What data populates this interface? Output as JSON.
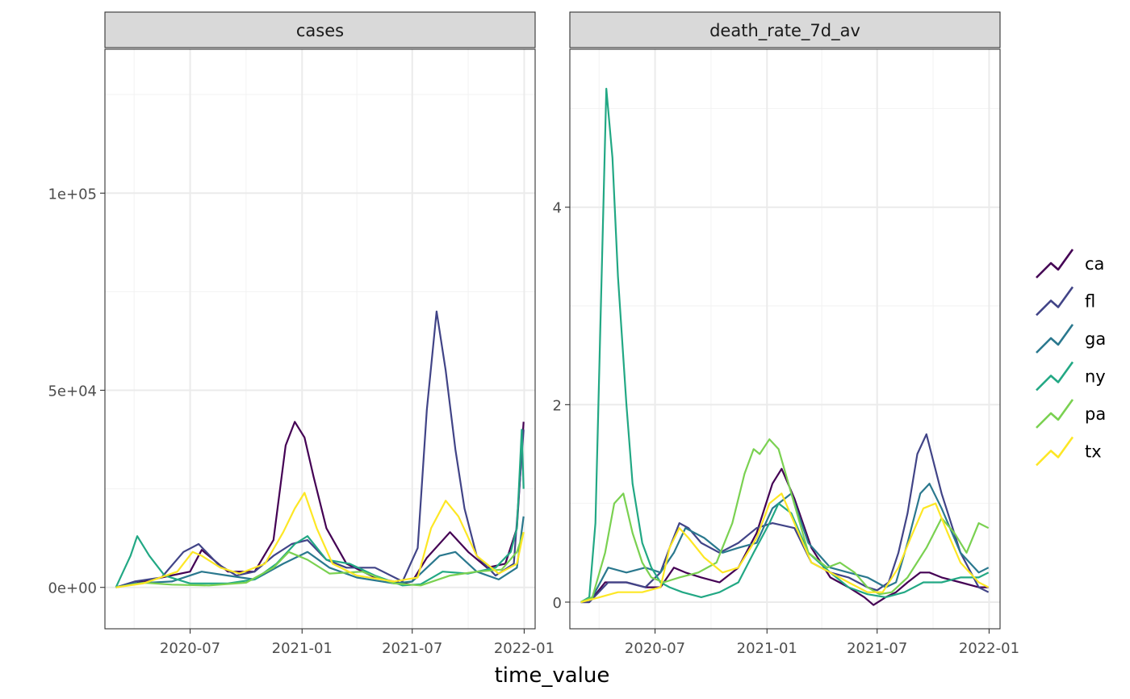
{
  "figure": {
    "xlabel": "time_value",
    "legend_title": "",
    "legend": [
      {
        "key": "ca",
        "color": "#440154"
      },
      {
        "key": "fl",
        "color": "#414487"
      },
      {
        "key": "ga",
        "color": "#2A788E"
      },
      {
        "key": "ny",
        "color": "#22A884"
      },
      {
        "key": "pa",
        "color": "#7AD151"
      },
      {
        "key": "tx",
        "color": "#FDE725"
      }
    ]
  },
  "chart_data": [
    {
      "type": "line",
      "facet_label": "cases",
      "xlabel": "time_value",
      "ylabel": "",
      "x_domain": [
        "2020-02-12",
        "2022-01-19"
      ],
      "xlim": [
        "2020-02-12",
        "2022-01-19"
      ],
      "ylim": [
        -10500,
        136500
      ],
      "x_ticks": [
        "2020-07-01",
        "2021-01-01",
        "2021-07-01",
        "2022-01-01"
      ],
      "x_tick_labels": [
        "2020-07",
        "2021-01",
        "2021-07",
        "2022-01"
      ],
      "y_ticks": [
        0,
        50000,
        100000
      ],
      "y_tick_labels": [
        "0e+00",
        "5e+04",
        "1e+05"
      ],
      "grid": true,
      "series": [
        {
          "name": "ca",
          "color": "#440154",
          "x": [
            "2020-03-01",
            "2020-04-01",
            "2020-05-15",
            "2020-07-01",
            "2020-07-20",
            "2020-09-01",
            "2020-10-15",
            "2020-11-15",
            "2020-12-05",
            "2020-12-20",
            "2021-01-05",
            "2021-01-20",
            "2021-02-10",
            "2021-03-15",
            "2021-05-01",
            "2021-06-15",
            "2021-07-01",
            "2021-07-25",
            "2021-09-01",
            "2021-10-01",
            "2021-11-01",
            "2021-12-01",
            "2021-12-20",
            "2021-12-31"
          ],
          "values": [
            0,
            1000,
            2500,
            4000,
            9500,
            4000,
            4000,
            12000,
            36000,
            42000,
            38000,
            28000,
            15000,
            6000,
            2500,
            1000,
            1500,
            7500,
            14000,
            9000,
            5000,
            6000,
            15000,
            42000
          ]
        },
        {
          "name": "fl",
          "color": "#414487",
          "x": [
            "2020-03-01",
            "2020-04-01",
            "2020-05-15",
            "2020-06-20",
            "2020-07-15",
            "2020-08-15",
            "2020-09-15",
            "2020-10-15",
            "2020-11-15",
            "2020-12-15",
            "2021-01-10",
            "2021-02-10",
            "2021-03-15",
            "2021-05-01",
            "2021-06-15",
            "2021-07-10",
            "2021-07-25",
            "2021-08-10",
            "2021-08-25",
            "2021-09-10",
            "2021-09-25",
            "2021-10-15",
            "2021-11-15",
            "2021-12-15",
            "2021-12-31"
          ],
          "values": [
            0,
            1500,
            2500,
            9000,
            11000,
            6000,
            3000,
            4000,
            8000,
            11000,
            12000,
            7000,
            5000,
            5000,
            1500,
            10000,
            45000,
            70000,
            55000,
            35000,
            20000,
            8000,
            3000,
            6000,
            40000
          ]
        },
        {
          "name": "ga",
          "color": "#2A788E",
          "x": [
            "2020-03-01",
            "2020-04-01",
            "2020-06-01",
            "2020-07-20",
            "2020-09-01",
            "2020-10-15",
            "2020-12-01",
            "2021-01-10",
            "2021-02-15",
            "2021-04-01",
            "2021-06-01",
            "2021-07-01",
            "2021-08-15",
            "2021-09-10",
            "2021-10-15",
            "2021-11-20",
            "2021-12-20",
            "2021-12-31"
          ],
          "values": [
            0,
            1000,
            1500,
            4000,
            3000,
            2000,
            6000,
            9000,
            5000,
            2500,
            1000,
            1500,
            8000,
            9000,
            4000,
            2000,
            5000,
            18000
          ]
        },
        {
          "name": "ny",
          "color": "#22A884",
          "x": [
            "2020-03-01",
            "2020-03-25",
            "2020-04-05",
            "2020-04-25",
            "2020-05-20",
            "2020-07-01",
            "2020-09-01",
            "2020-10-15",
            "2020-11-20",
            "2020-12-20",
            "2021-01-10",
            "2021-02-10",
            "2021-03-20",
            "2021-05-01",
            "2021-06-15",
            "2021-07-15",
            "2021-08-20",
            "2021-10-01",
            "2021-11-15",
            "2021-12-10",
            "2021-12-20",
            "2021-12-28",
            "2021-12-31"
          ],
          "values": [
            0,
            8000,
            13000,
            8000,
            3000,
            1000,
            1000,
            2000,
            6000,
            11000,
            13000,
            7000,
            6000,
            3000,
            500,
            800,
            4000,
            3500,
            5000,
            9000,
            15000,
            40000,
            25000
          ]
        },
        {
          "name": "pa",
          "color": "#7AD151",
          "x": [
            "2020-03-01",
            "2020-04-15",
            "2020-06-01",
            "2020-08-01",
            "2020-10-01",
            "2020-11-15",
            "2020-12-10",
            "2021-01-10",
            "2021-02-15",
            "2021-04-10",
            "2021-06-01",
            "2021-07-15",
            "2021-09-01",
            "2021-10-15",
            "2021-11-25",
            "2021-12-20",
            "2021-12-31"
          ],
          "values": [
            0,
            1200,
            700,
            500,
            1200,
            5000,
            9000,
            7000,
            3500,
            4000,
            1000,
            500,
            3000,
            4000,
            4500,
            9000,
            14000
          ]
        },
        {
          "name": "tx",
          "color": "#FDE725",
          "x": [
            "2020-03-01",
            "2020-04-15",
            "2020-06-10",
            "2020-07-05",
            "2020-07-20",
            "2020-08-20",
            "2020-09-20",
            "2020-11-01",
            "2020-12-01",
            "2020-12-20",
            "2021-01-05",
            "2021-01-25",
            "2021-02-20",
            "2021-04-01",
            "2021-06-01",
            "2021-07-10",
            "2021-08-01",
            "2021-08-25",
            "2021-09-15",
            "2021-10-15",
            "2021-11-20",
            "2021-12-20",
            "2021-12-31"
          ],
          "values": [
            0,
            1000,
            4000,
            9000,
            8000,
            5000,
            3500,
            6000,
            14000,
            20000,
            24000,
            15000,
            6000,
            3000,
            1500,
            2500,
            15000,
            22000,
            18000,
            8000,
            3500,
            6000,
            14000
          ]
        }
      ]
    },
    {
      "type": "line",
      "facet_label": "death_rate_7d_av",
      "xlabel": "time_value",
      "ylabel": "",
      "x_domain": [
        "2020-02-12",
        "2022-01-19"
      ],
      "xlim": [
        "2020-02-12",
        "2022-01-19"
      ],
      "ylim": [
        -0.27,
        5.6
      ],
      "x_ticks": [
        "2020-07-01",
        "2021-01-01",
        "2021-07-01",
        "2022-01-01"
      ],
      "x_tick_labels": [
        "2020-07",
        "2021-01",
        "2021-07",
        "2022-01"
      ],
      "y_ticks": [
        0,
        2,
        4
      ],
      "y_tick_labels": [
        "0",
        "2",
        "4"
      ],
      "grid": true,
      "series": [
        {
          "name": "ca",
          "color": "#440154",
          "x": [
            "2020-03-01",
            "2020-03-15",
            "2020-04-10",
            "2020-05-15",
            "2020-06-15",
            "2020-07-10",
            "2020-08-01",
            "2020-08-20",
            "2020-09-15",
            "2020-10-15",
            "2020-11-15",
            "2020-12-15",
            "2021-01-10",
            "2021-01-25",
            "2021-02-15",
            "2021-03-15",
            "2021-04-15",
            "2021-05-15",
            "2021-06-10",
            "2021-06-25",
            "2021-07-15",
            "2021-08-01",
            "2021-08-20",
            "2021-09-10",
            "2021-09-25",
            "2021-10-15",
            "2021-11-15",
            "2021-12-15",
            "2021-12-31"
          ],
          "values": [
            0,
            0,
            0.2,
            0.2,
            0.15,
            0.15,
            0.35,
            0.3,
            0.25,
            0.2,
            0.35,
            0.7,
            1.2,
            1.35,
            1.05,
            0.55,
            0.25,
            0.15,
            0.05,
            -0.03,
            0.05,
            0.1,
            0.2,
            0.3,
            0.3,
            0.25,
            0.2,
            0.15,
            0.15
          ]
        },
        {
          "name": "fl",
          "color": "#414487",
          "x": [
            "2020-03-01",
            "2020-03-15",
            "2020-04-15",
            "2020-05-15",
            "2020-06-15",
            "2020-07-10",
            "2020-07-25",
            "2020-08-10",
            "2020-08-25",
            "2020-09-15",
            "2020-10-15",
            "2020-11-15",
            "2020-12-15",
            "2021-01-10",
            "2021-02-15",
            "2021-03-15",
            "2021-04-15",
            "2021-05-15",
            "2021-06-15",
            "2021-07-01",
            "2021-07-20",
            "2021-08-05",
            "2021-08-20",
            "2021-09-05",
            "2021-09-20",
            "2021-10-15",
            "2021-11-15",
            "2021-12-15",
            "2021-12-31"
          ],
          "values": [
            0,
            0,
            0.2,
            0.2,
            0.15,
            0.3,
            0.55,
            0.8,
            0.75,
            0.6,
            0.5,
            0.6,
            0.75,
            0.8,
            0.75,
            0.4,
            0.3,
            0.25,
            0.15,
            0.12,
            0.2,
            0.5,
            0.9,
            1.5,
            1.7,
            1.1,
            0.5,
            0.15,
            0.1
          ]
        },
        {
          "name": "ga",
          "color": "#2A788E",
          "x": [
            "2020-03-01",
            "2020-03-20",
            "2020-04-15",
            "2020-05-15",
            "2020-06-15",
            "2020-07-10",
            "2020-08-01",
            "2020-08-20",
            "2020-09-20",
            "2020-10-20",
            "2020-11-15",
            "2020-12-15",
            "2021-01-10",
            "2021-02-10",
            "2021-03-10",
            "2021-04-15",
            "2021-05-15",
            "2021-06-15",
            "2021-07-15",
            "2021-08-01",
            "2021-08-20",
            "2021-09-10",
            "2021-09-25",
            "2021-10-15",
            "2021-11-15",
            "2021-12-15",
            "2021-12-31"
          ],
          "values": [
            0,
            0.05,
            0.35,
            0.3,
            0.35,
            0.3,
            0.5,
            0.75,
            0.65,
            0.5,
            0.55,
            0.6,
            0.95,
            1.1,
            0.6,
            0.35,
            0.3,
            0.25,
            0.15,
            0.2,
            0.6,
            1.1,
            1.2,
            0.95,
            0.5,
            0.3,
            0.35
          ]
        },
        {
          "name": "ny",
          "color": "#22A884",
          "x": [
            "2020-03-01",
            "2020-03-15",
            "2020-03-25",
            "2020-04-05",
            "2020-04-12",
            "2020-04-22",
            "2020-05-01",
            "2020-05-15",
            "2020-05-25",
            "2020-06-10",
            "2020-06-25",
            "2020-07-10",
            "2020-07-25",
            "2020-08-15",
            "2020-09-15",
            "2020-10-15",
            "2020-11-15",
            "2020-12-10",
            "2021-01-05",
            "2021-01-20",
            "2021-02-10",
            "2021-03-10",
            "2021-04-15",
            "2021-05-15",
            "2021-06-15",
            "2021-07-15",
            "2021-08-15",
            "2021-09-15",
            "2021-10-15",
            "2021-11-15",
            "2021-12-15",
            "2021-12-31"
          ],
          "values": [
            0,
            0.05,
            0.8,
            3.5,
            5.2,
            4.5,
            3.3,
            2.0,
            1.2,
            0.6,
            0.35,
            0.2,
            0.15,
            0.1,
            0.05,
            0.1,
            0.2,
            0.5,
            0.8,
            1.0,
            0.9,
            0.5,
            0.3,
            0.15,
            0.08,
            0.05,
            0.1,
            0.2,
            0.2,
            0.25,
            0.25,
            0.3
          ]
        },
        {
          "name": "pa",
          "color": "#7AD151",
          "x": [
            "2020-03-01",
            "2020-03-20",
            "2020-04-10",
            "2020-04-25",
            "2020-05-10",
            "2020-05-25",
            "2020-06-10",
            "2020-06-25",
            "2020-07-15",
            "2020-08-10",
            "2020-09-10",
            "2020-10-10",
            "2020-11-05",
            "2020-11-25",
            "2020-12-10",
            "2020-12-20",
            "2021-01-05",
            "2021-01-20",
            "2021-02-10",
            "2021-03-10",
            "2021-04-10",
            "2021-05-01",
            "2021-05-25",
            "2021-06-15",
            "2021-07-05",
            "2021-07-25",
            "2021-08-20",
            "2021-09-20",
            "2021-10-15",
            "2021-11-05",
            "2021-11-25",
            "2021-12-15",
            "2021-12-31"
          ],
          "values": [
            0,
            0.05,
            0.5,
            1.0,
            1.1,
            0.7,
            0.4,
            0.25,
            0.2,
            0.25,
            0.3,
            0.4,
            0.8,
            1.3,
            1.55,
            1.5,
            1.65,
            1.55,
            1.1,
            0.5,
            0.35,
            0.4,
            0.3,
            0.15,
            0.08,
            0.1,
            0.25,
            0.55,
            0.85,
            0.7,
            0.5,
            0.8,
            0.75
          ]
        },
        {
          "name": "tx",
          "color": "#FDE725",
          "x": [
            "2020-03-01",
            "2020-04-01",
            "2020-05-01",
            "2020-06-10",
            "2020-07-10",
            "2020-07-25",
            "2020-08-10",
            "2020-08-25",
            "2020-09-20",
            "2020-10-20",
            "2020-11-15",
            "2020-12-15",
            "2021-01-05",
            "2021-01-25",
            "2021-02-15",
            "2021-03-15",
            "2021-04-15",
            "2021-05-15",
            "2021-06-15",
            "2021-07-10",
            "2021-08-05",
            "2021-08-25",
            "2021-09-15",
            "2021-10-05",
            "2021-10-25",
            "2021-11-15",
            "2021-12-15",
            "2021-12-31"
          ],
          "values": [
            0,
            0.05,
            0.1,
            0.1,
            0.15,
            0.55,
            0.75,
            0.65,
            0.45,
            0.3,
            0.35,
            0.65,
            1.0,
            1.1,
            0.8,
            0.4,
            0.3,
            0.2,
            0.1,
            0.1,
            0.35,
            0.65,
            0.95,
            1.0,
            0.7,
            0.4,
            0.2,
            0.15
          ]
        }
      ]
    }
  ]
}
